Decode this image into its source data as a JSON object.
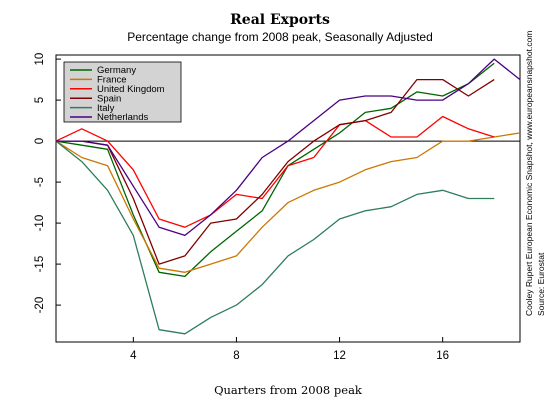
{
  "chart_data": {
    "type": "line",
    "title": "Real Exports",
    "subtitle": "Percentage change from 2008 peak, Seasonally Adjusted",
    "xlabel": "Quarters from 2008 peak",
    "ylabel": "",
    "xlim": [
      1,
      19
    ],
    "ylim": [
      -24.5,
      10.5
    ],
    "x_ticks": [
      4,
      8,
      12,
      16
    ],
    "y_ticks": [
      10,
      5,
      0,
      -5,
      -10,
      -15,
      -20
    ],
    "grid": false,
    "legend_position": "top-left",
    "source_lines": [
      "Cooley Rupert European Economic Snapshot, www.europeansnapshot.com",
      "Source: Eurostat"
    ],
    "x": [
      1,
      2,
      3,
      4,
      5,
      6,
      7,
      8,
      9,
      10,
      11,
      12,
      13,
      14,
      15,
      16,
      17,
      18,
      19
    ],
    "series": [
      {
        "name": "Germany",
        "color": "#006400",
        "values": [
          0,
          -0.5,
          -1,
          -9,
          -16,
          -16.5,
          -13.5,
          -11,
          -8.5,
          -3,
          -1,
          1,
          3.5,
          4,
          6,
          5.5,
          7,
          9.5,
          null
        ]
      },
      {
        "name": "France",
        "color": "#cc7700",
        "values": [
          0,
          -2,
          -3,
          -9.5,
          -15.5,
          -16,
          -15,
          -14,
          -10.5,
          -7.5,
          -6,
          -5,
          -3.5,
          -2.5,
          -2,
          0,
          0,
          0.5,
          1
        ]
      },
      {
        "name": "United Kingdom",
        "color": "#ff0000",
        "values": [
          0,
          1.5,
          0,
          -3.5,
          -9.5,
          -10.5,
          -9,
          -6.5,
          -7,
          -3,
          -2,
          2,
          2.5,
          0.5,
          0.5,
          3,
          1.5,
          0.5,
          null
        ]
      },
      {
        "name": "Spain",
        "color": "#800000",
        "values": [
          0,
          0,
          -0.5,
          -7,
          -15,
          -14,
          -10,
          -9.5,
          -6.5,
          -2.5,
          0,
          2,
          2.5,
          3.5,
          7.5,
          7.5,
          5.5,
          7.5,
          null
        ]
      },
      {
        "name": "Italy",
        "color": "#2e7d5b",
        "values": [
          0,
          -2.5,
          -6,
          -11.5,
          -23,
          -23.5,
          -21.5,
          -20,
          -17.5,
          -14,
          -12,
          -9.5,
          -8.5,
          -8,
          -6.5,
          -6,
          -7,
          -7,
          null
        ]
      },
      {
        "name": "Netherlands",
        "color": "#4b0082",
        "values": [
          0,
          0,
          -0.5,
          -5.5,
          -10.5,
          -11.5,
          -9,
          -6,
          -2,
          0,
          2.5,
          5,
          5.5,
          5.5,
          5,
          5,
          7,
          10,
          7.5
        ]
      }
    ]
  }
}
